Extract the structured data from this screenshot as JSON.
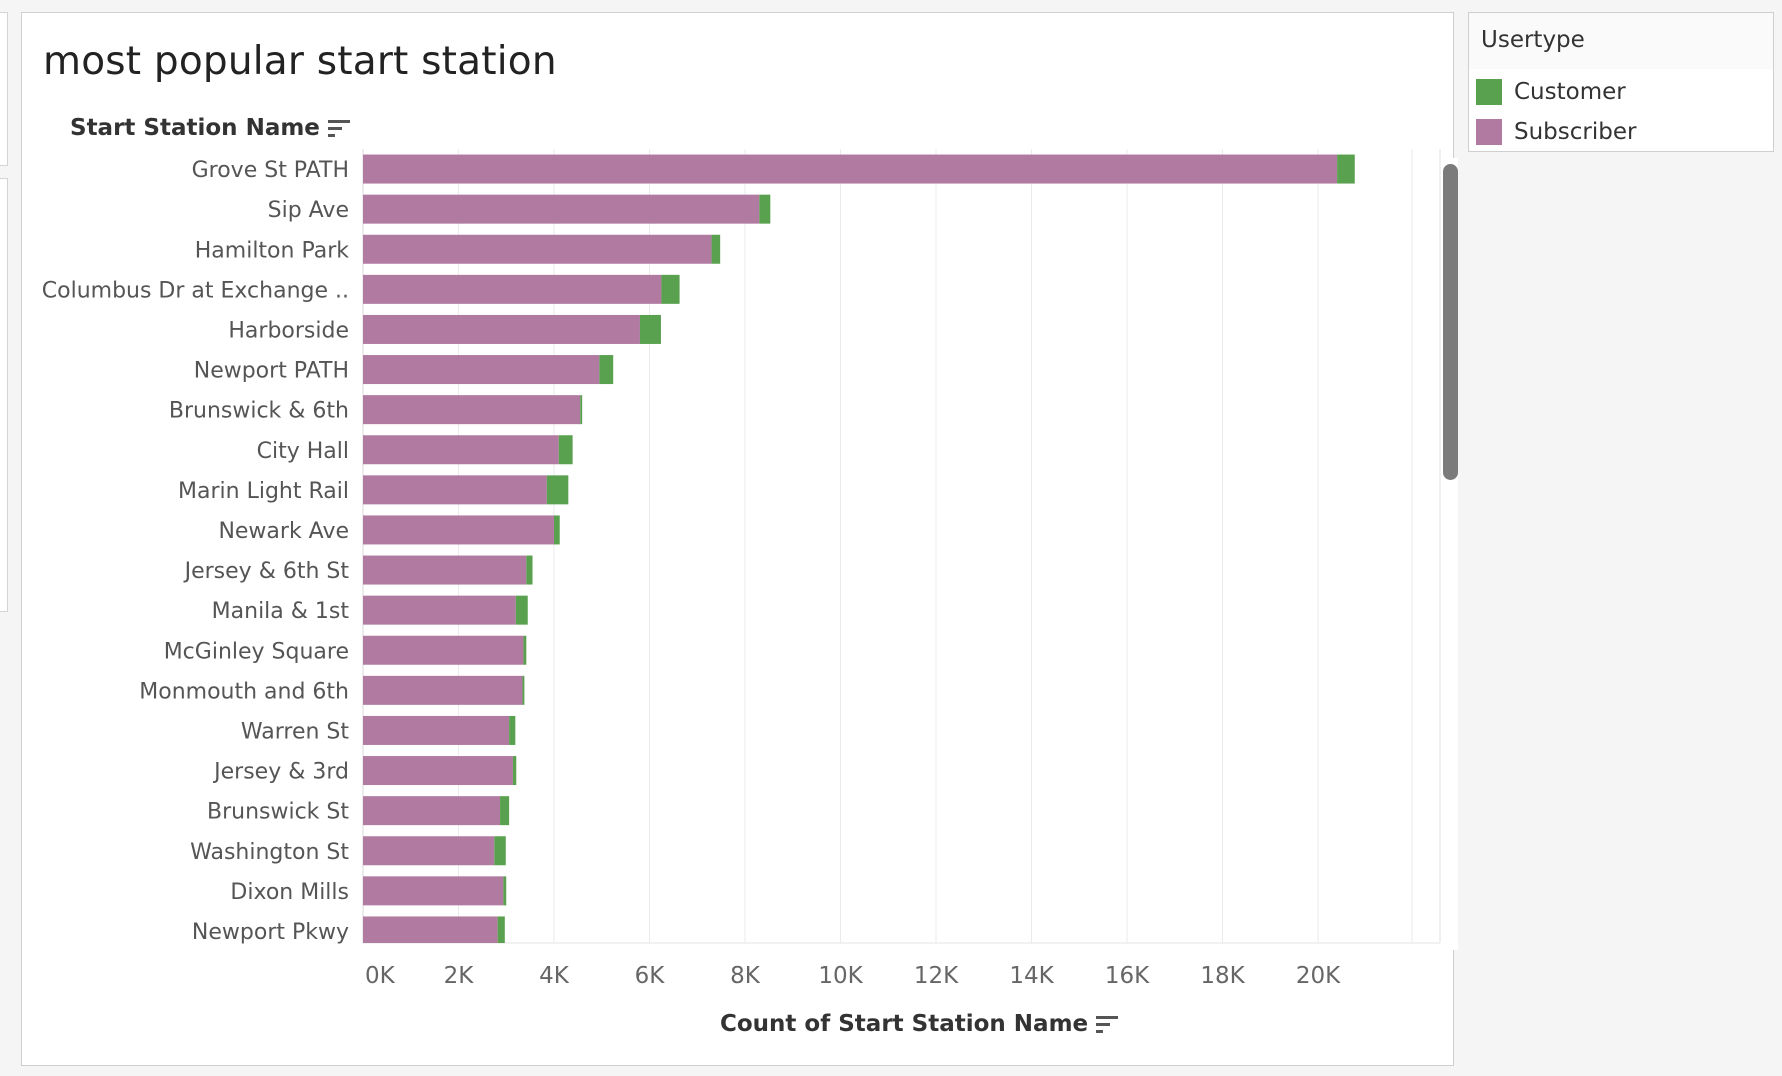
{
  "title": "most popular start station",
  "colors": {
    "Customer": "#59a14f",
    "Subscriber": "#b07aa1"
  },
  "legend": {
    "title": "Usertype",
    "items": [
      {
        "label": "Customer",
        "color": "#59a14f"
      },
      {
        "label": "Subscriber",
        "color": "#b07aa1"
      }
    ]
  },
  "chart_data": {
    "type": "bar",
    "orientation": "horizontal",
    "stacked": true,
    "title": "most popular start station",
    "ylabel": "Start Station Name",
    "xlabel": "Count of Start Station Name",
    "xlim": [
      0,
      22000
    ],
    "x_ticks": [
      0,
      2000,
      4000,
      6000,
      8000,
      10000,
      12000,
      14000,
      16000,
      18000,
      20000
    ],
    "x_tick_labels": [
      "0K",
      "2K",
      "4K",
      "6K",
      "8K",
      "10K",
      "12K",
      "14K",
      "16K",
      "18K",
      "20K"
    ],
    "grid": "vertical",
    "legend_position": "top-right, separate panel",
    "categories": [
      "Grove St PATH",
      "Sip Ave",
      "Hamilton Park",
      "Columbus Dr at Exchange ..",
      "Harborside",
      "Newport PATH",
      "Brunswick & 6th",
      "City Hall",
      "Marin Light Rail",
      "Newark Ave",
      "Jersey & 6th St",
      "Manila & 1st",
      "McGinley Square",
      "Monmouth and 6th",
      "Warren St",
      "Jersey & 3rd",
      "Brunswick St",
      "Washington St",
      "Dixon Mills",
      "Newport Pkwy"
    ],
    "series": [
      {
        "name": "Subscriber",
        "values": [
          20400,
          8300,
          7300,
          6250,
          5800,
          4950,
          4550,
          4100,
          3850,
          4000,
          3420,
          3200,
          3360,
          3340,
          3060,
          3140,
          2870,
          2750,
          2940,
          2820
        ]
      },
      {
        "name": "Customer",
        "values": [
          370,
          230,
          180,
          380,
          440,
          290,
          40,
          290,
          450,
          120,
          130,
          250,
          60,
          40,
          130,
          70,
          190,
          240,
          60,
          150
        ]
      }
    ]
  }
}
